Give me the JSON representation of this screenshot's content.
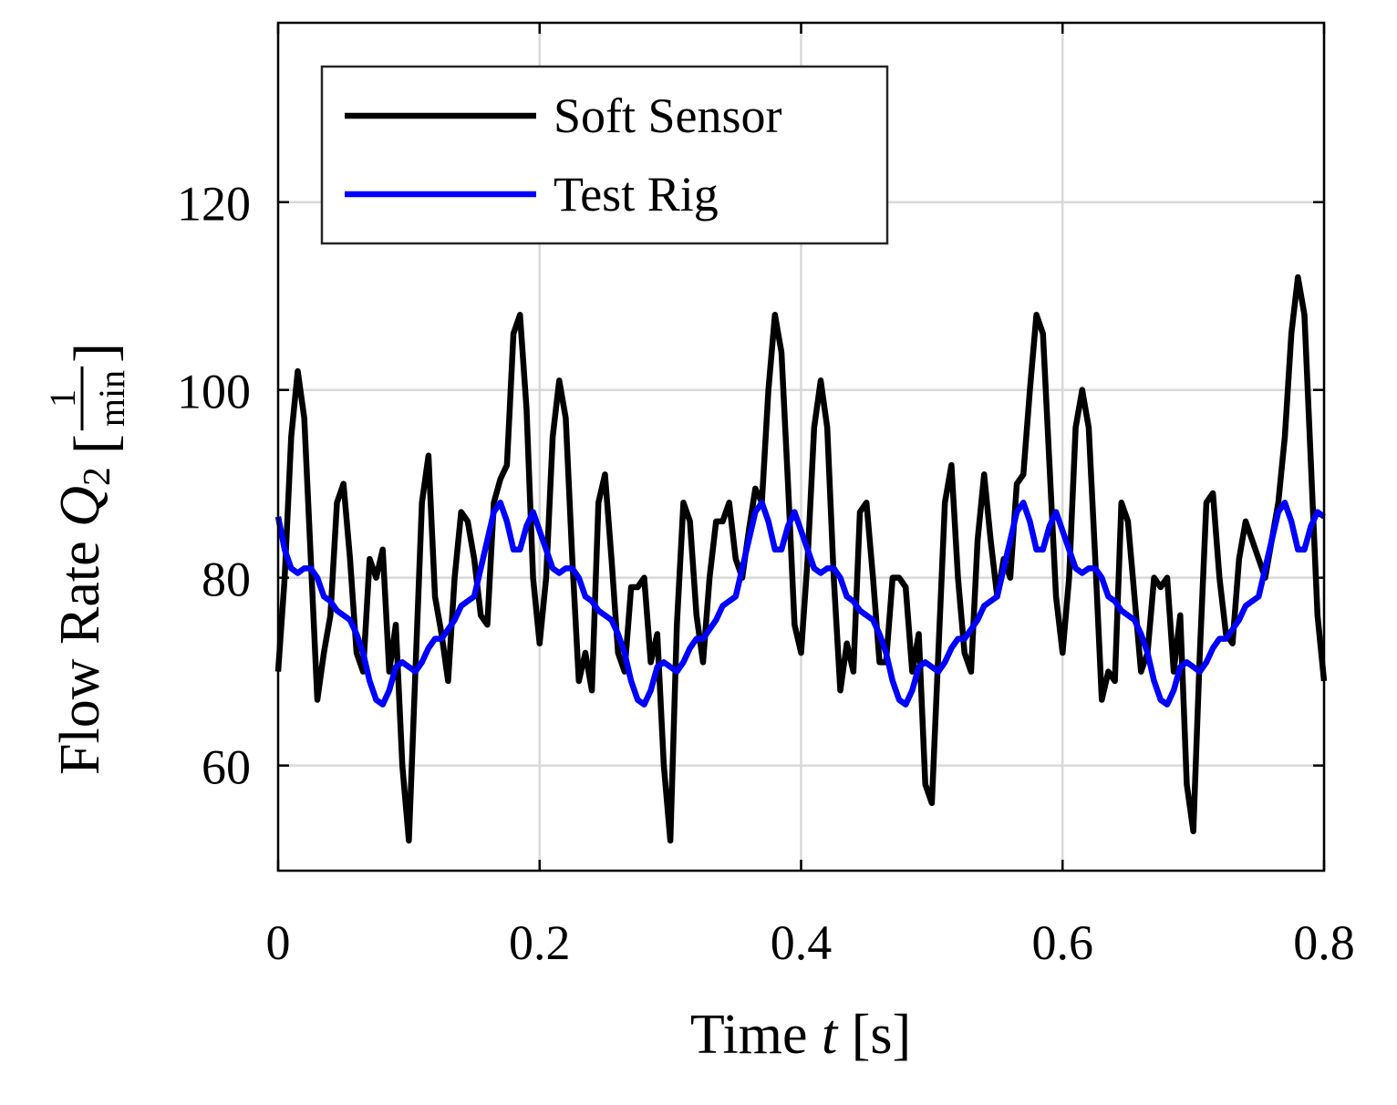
{
  "chart_data": {
    "type": "line",
    "xlabel": [
      "Time ",
      "t",
      " [s]"
    ],
    "ylabel": [
      "Flow Rate ",
      "Q",
      "2",
      "[",
      "1",
      "min",
      "]"
    ],
    "xlim": [
      0,
      0.8
    ],
    "ylim": [
      48.8,
      139.1
    ],
    "xticks": [
      0,
      0.2,
      0.4,
      0.6,
      0.8
    ],
    "yticks": [
      60,
      80,
      100,
      120
    ],
    "grid": true,
    "legend": "upper left",
    "x": [
      0,
      0.005,
      0.01,
      0.015,
      0.02,
      0.025,
      0.03,
      0.035,
      0.04,
      0.045,
      0.05,
      0.055,
      0.06,
      0.065,
      0.07,
      0.075,
      0.08,
      0.085,
      0.09,
      0.095,
      0.1,
      0.105,
      0.11,
      0.115,
      0.12,
      0.125,
      0.13,
      0.135,
      0.14,
      0.145,
      0.15,
      0.155,
      0.16,
      0.165,
      0.17,
      0.175,
      0.18,
      0.185,
      0.19,
      0.195,
      0.2,
      0.205,
      0.21,
      0.215,
      0.22,
      0.225,
      0.23,
      0.235,
      0.24,
      0.245,
      0.25,
      0.255,
      0.26,
      0.265,
      0.27,
      0.275,
      0.28,
      0.285,
      0.29,
      0.295,
      0.3,
      0.305,
      0.31,
      0.315,
      0.32,
      0.325,
      0.33,
      0.335,
      0.34,
      0.345,
      0.35,
      0.355,
      0.36,
      0.365,
      0.37,
      0.375,
      0.38,
      0.385,
      0.39,
      0.395,
      0.4,
      0.405,
      0.41,
      0.415,
      0.42,
      0.425,
      0.43,
      0.435,
      0.44,
      0.445,
      0.45,
      0.455,
      0.46,
      0.465,
      0.47,
      0.475,
      0.48,
      0.485,
      0.49,
      0.495,
      0.5,
      0.505,
      0.51,
      0.515,
      0.52,
      0.525,
      0.53,
      0.535,
      0.54,
      0.545,
      0.55,
      0.555,
      0.56,
      0.565,
      0.57,
      0.575,
      0.58,
      0.585,
      0.59,
      0.595,
      0.6,
      0.605,
      0.61,
      0.615,
      0.62,
      0.625,
      0.63,
      0.635,
      0.64,
      0.645,
      0.65,
      0.655,
      0.66,
      0.665,
      0.67,
      0.675,
      0.68,
      0.685,
      0.69,
      0.695,
      0.7,
      0.705,
      0.71,
      0.715,
      0.72,
      0.725,
      0.73,
      0.735,
      0.74,
      0.745,
      0.75,
      0.755,
      0.76,
      0.765,
      0.77,
      0.775,
      0.78,
      0.785,
      0.79,
      0.795,
      0.8
    ],
    "series": [
      {
        "name": "Soft Sensor",
        "color": "#000000",
        "values": [
          70,
          80,
          95,
          102,
          97,
          82,
          67,
          72,
          76,
          88,
          90,
          82,
          72,
          70,
          82,
          80,
          83,
          70,
          75,
          60,
          52,
          70,
          88,
          93,
          78,
          74,
          69,
          80,
          87,
          86,
          82,
          76,
          75,
          88,
          90.5,
          92,
          106,
          108,
          98,
          80,
          73,
          80,
          95,
          101,
          97,
          82,
          69,
          72,
          68,
          88,
          91,
          82,
          72,
          70,
          79,
          79,
          80,
          71,
          74,
          60,
          52,
          75,
          88,
          86,
          76,
          71,
          80,
          86,
          86,
          88,
          82,
          80,
          85,
          89.5,
          88,
          100,
          108,
          104,
          90,
          75,
          72,
          82,
          96,
          101,
          96,
          80,
          68,
          73,
          70,
          87,
          88,
          80,
          71,
          71,
          80,
          80,
          79,
          70,
          74,
          58,
          56,
          72,
          88,
          92,
          80,
          72,
          70,
          84,
          91,
          84,
          78,
          82,
          80,
          90,
          91,
          100,
          108,
          106,
          92,
          78,
          72,
          80,
          96,
          100,
          96,
          82,
          67,
          70,
          69,
          88,
          86,
          78,
          70,
          72,
          80,
          79,
          80,
          70,
          76,
          58,
          53,
          72,
          88,
          89,
          80,
          74,
          73,
          82,
          86,
          84,
          82,
          80,
          84,
          88,
          95,
          106,
          112,
          108,
          92,
          76,
          69
        ]
      },
      {
        "name": "Test Rig",
        "color": "#0000ff",
        "values": [
          86.5,
          83,
          81,
          80.5,
          81,
          81,
          80,
          78,
          77.5,
          76.5,
          76,
          75.5,
          74,
          72,
          69,
          67,
          66.5,
          68,
          70.5,
          71,
          70.5,
          70,
          71,
          72.5,
          73.5,
          73.5,
          74.5,
          75.5,
          77,
          77.5,
          78,
          81,
          84,
          87,
          88,
          86,
          83,
          83,
          85.5,
          87,
          85,
          83,
          81,
          80.5,
          81,
          81,
          80,
          78,
          77.5,
          76.5,
          76,
          75.5,
          74,
          72,
          69,
          67,
          66.5,
          68,
          70.5,
          71,
          70.5,
          70,
          71,
          72.5,
          73.5,
          73.5,
          74.5,
          75.5,
          77,
          77.5,
          78,
          81,
          84,
          87,
          88,
          86,
          83,
          83,
          85.5,
          87,
          85,
          83,
          81,
          80.5,
          81,
          81,
          80,
          78,
          77.5,
          76.5,
          76,
          75.5,
          74,
          72,
          69,
          67,
          66.5,
          68,
          70.5,
          71,
          70.5,
          70,
          71,
          72.5,
          73.5,
          73.5,
          74.5,
          75.5,
          77,
          77.5,
          78,
          81,
          84,
          87,
          88,
          86,
          83,
          83,
          85.5,
          87,
          85,
          83,
          81,
          80.5,
          81,
          81,
          80,
          78,
          77.5,
          76.5,
          76,
          75.5,
          74,
          72,
          69,
          67,
          66.5,
          68,
          70.5,
          71,
          70.5,
          70,
          71,
          72.5,
          73.5,
          73.5,
          74.5,
          75.5,
          77,
          77.5,
          78,
          81,
          84,
          87,
          88,
          86,
          83,
          83,
          85.5,
          87,
          86.5
        ]
      }
    ]
  }
}
